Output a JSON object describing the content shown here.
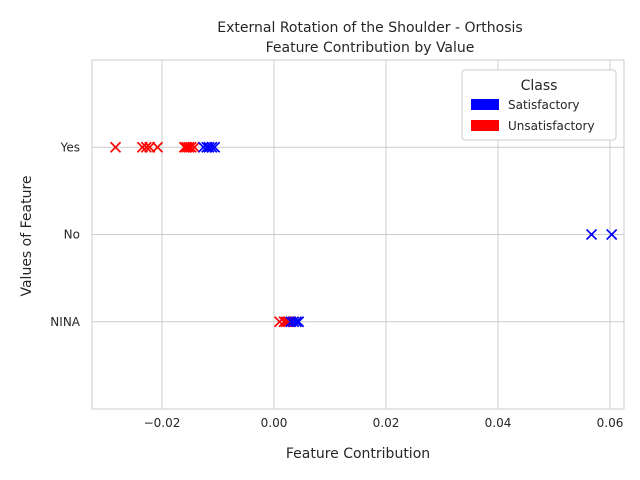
{
  "chart_data": {
    "type": "scatter",
    "title_line1": "External Rotation of the Shoulder - Orthosis",
    "title_line2": "Feature Contribution by Value",
    "xlabel": "Feature Contribution",
    "ylabel": "Values of Feature",
    "xlim": [
      -0.0325,
      0.0625
    ],
    "x_ticks": [
      -0.02,
      0.0,
      0.02,
      0.04,
      0.06
    ],
    "x_tick_labels": [
      "−0.02",
      "0.00",
      "0.02",
      "0.04",
      "0.06"
    ],
    "categories": [
      "NINA",
      "No",
      "Yes"
    ],
    "grid": true,
    "marker": "x",
    "legend": {
      "title": "Class",
      "position": "top-right",
      "entries": [
        {
          "label": "Satisfactory",
          "color": "#0000ff"
        },
        {
          "label": "Unsatisfactory",
          "color": "#ff0000"
        }
      ]
    },
    "series": [
      {
        "name": "Unsatisfactory",
        "color": "#ff0000",
        "points": [
          {
            "x": -0.0283,
            "y": "Yes"
          },
          {
            "x": -0.0235,
            "y": "Yes"
          },
          {
            "x": -0.0228,
            "y": "Yes"
          },
          {
            "x": -0.0222,
            "y": "Yes"
          },
          {
            "x": -0.0208,
            "y": "Yes"
          },
          {
            "x": -0.016,
            "y": "Yes"
          },
          {
            "x": -0.0156,
            "y": "Yes"
          },
          {
            "x": -0.0152,
            "y": "Yes"
          },
          {
            "x": -0.0148,
            "y": "Yes"
          },
          {
            "x": -0.0142,
            "y": "Yes"
          },
          {
            "x": 0.001,
            "y": "NINA"
          },
          {
            "x": 0.0018,
            "y": "NINA"
          },
          {
            "x": 0.0022,
            "y": "NINA"
          },
          {
            "x": 0.0026,
            "y": "NINA"
          }
        ]
      },
      {
        "name": "Satisfactory",
        "color": "#0000ff",
        "points": [
          {
            "x": -0.0126,
            "y": "Yes"
          },
          {
            "x": -0.012,
            "y": "Yes"
          },
          {
            "x": -0.0116,
            "y": "Yes"
          },
          {
            "x": -0.0111,
            "y": "Yes"
          },
          {
            "x": -0.0106,
            "y": "Yes"
          },
          {
            "x": 0.003,
            "y": "NINA"
          },
          {
            "x": 0.0035,
            "y": "NINA"
          },
          {
            "x": 0.004,
            "y": "NINA"
          },
          {
            "x": 0.0044,
            "y": "NINA"
          },
          {
            "x": 0.0567,
            "y": "No"
          },
          {
            "x": 0.0603,
            "y": "No"
          }
        ]
      }
    ]
  }
}
